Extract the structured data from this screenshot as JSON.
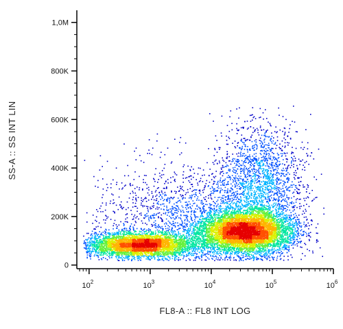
{
  "chart_data": {
    "type": "scatter",
    "title": "",
    "xlabel": "FL8-A :: FL8 INT LOG",
    "ylabel": "SS-A :: SS INT LIN",
    "x_scale": "log",
    "y_scale": "linear",
    "xlim": [
      63,
      1000000
    ],
    "ylim": [
      -15000,
      1050000
    ],
    "x_ticks": [
      {
        "value": 100,
        "base": "10",
        "exp": "2"
      },
      {
        "value": 1000,
        "base": "10",
        "exp": "3"
      },
      {
        "value": 10000,
        "base": "10",
        "exp": "4"
      },
      {
        "value": 100000,
        "base": "10",
        "exp": "5"
      },
      {
        "value": 1000000,
        "base": "10",
        "exp": "6"
      }
    ],
    "y_ticks": [
      {
        "value": 0,
        "label": "0"
      },
      {
        "value": 200000,
        "label": "200K"
      },
      {
        "value": 400000,
        "label": "400K"
      },
      {
        "value": 600000,
        "label": "600K"
      },
      {
        "value": 800000,
        "label": "800K"
      },
      {
        "value": 1000000,
        "label": "1,0M"
      }
    ],
    "grid": false,
    "legend": "none",
    "density_colormap": [
      "#0000c8",
      "#0050ff",
      "#00b4ff",
      "#00e6a0",
      "#64f03c",
      "#dcf000",
      "#ffb400",
      "#ff5000",
      "#e60000"
    ],
    "populations": [
      {
        "x_center": 700,
        "y_center": 85000,
        "x_spread_decades": 0.45,
        "y_spread": 25000,
        "weight": 0.3
      },
      {
        "x_center": 35000,
        "y_center": 140000,
        "x_spread_decades": 0.4,
        "y_spread": 45000,
        "weight": 0.45
      },
      {
        "x_center": 60000,
        "y_center": 330000,
        "x_spread_decades": 0.35,
        "y_spread": 130000,
        "weight": 0.15
      },
      {
        "x_center": 3000,
        "y_center": 200000,
        "x_spread_decades": 0.7,
        "y_spread": 110000,
        "weight": 0.1
      }
    ]
  }
}
